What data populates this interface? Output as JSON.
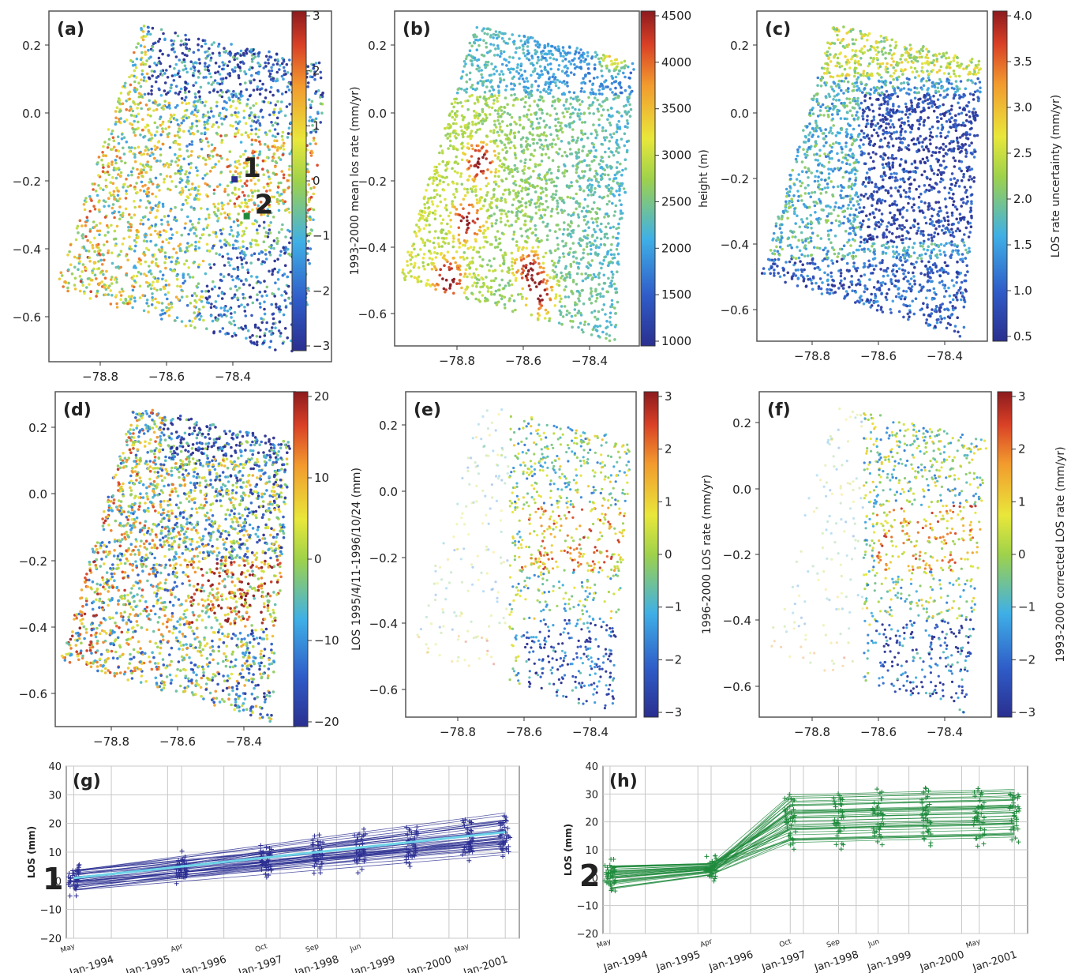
{
  "chart_data": [
    {
      "id": "a",
      "type": "scatter",
      "panel_label": "(a)",
      "x_ticks": [
        "−78.8",
        "−78.6",
        "−78.4"
      ],
      "y_ticks": [
        "0.2",
        "0.0",
        "−0.2",
        "−0.4",
        "−0.6"
      ],
      "colorbar": {
        "label": "1993-2000 mean los rate (mm/yr)",
        "ticks": [
          "3",
          "2",
          "1",
          "0",
          "−1",
          "−2",
          "−3"
        ],
        "range": [
          -3,
          3
        ]
      },
      "xlim": [
        -78.95,
        -78.25
      ],
      "ylim": [
        -0.7,
        0.3
      ],
      "markers": [
        {
          "label": "1",
          "x": -78.49,
          "y": -0.18,
          "color": "#2a2d8f"
        },
        {
          "label": "2",
          "x": -78.46,
          "y": -0.285,
          "color": "#1f8a3c"
        }
      ],
      "colormap": "jet"
    },
    {
      "id": "b",
      "type": "scatter",
      "panel_label": "(b)",
      "x_ticks": [
        "−78.8",
        "−78.6",
        "−78.4"
      ],
      "y_ticks": [
        "0.2",
        "0.0",
        "−0.2",
        "−0.4",
        "−0.6"
      ],
      "colorbar": {
        "label": "height (m)",
        "ticks": [
          "4500",
          "4000",
          "3500",
          "3000",
          "2500",
          "2000",
          "1500",
          "1000"
        ],
        "range": [
          750,
          4650
        ]
      },
      "xlim": [
        -78.95,
        -78.25
      ],
      "ylim": [
        -0.7,
        0.3
      ],
      "colormap": "jet"
    },
    {
      "id": "c",
      "type": "scatter",
      "panel_label": "(c)",
      "x_ticks": [
        "−78.8",
        "−78.6",
        "−78.4"
      ],
      "y_ticks": [
        "0.2",
        "0.0",
        "−0.2",
        "−0.4",
        "−0.6"
      ],
      "colorbar": {
        "label": "LOS rate uncertainty (mm/yr)",
        "ticks": [
          "4.0",
          "3.5",
          "3.0",
          "2.5",
          "2.0",
          "1.5",
          "1.0",
          "0.5"
        ],
        "range": [
          0.1,
          4.3
        ]
      },
      "xlim": [
        -78.95,
        -78.25
      ],
      "ylim": [
        -0.7,
        0.3
      ],
      "colormap": "jet"
    },
    {
      "id": "d",
      "type": "scatter",
      "panel_label": "(d)",
      "x_ticks": [
        "−78.8",
        "−78.6",
        "−78.4"
      ],
      "y_ticks": [
        "0.2",
        "0.0",
        "−0.2",
        "−0.4",
        "−0.6"
      ],
      "colorbar": {
        "label": "LOS 1995/4/11-1996/10/24 (mm)",
        "ticks": [
          "20",
          "10",
          "0",
          "−10",
          "−20"
        ],
        "range": [
          -25,
          25
        ]
      },
      "xlim": [
        -78.95,
        -78.25
      ],
      "ylim": [
        -0.7,
        0.3
      ],
      "colormap": "jet"
    },
    {
      "id": "e",
      "type": "scatter",
      "panel_label": "(e)",
      "x_ticks": [
        "−78.8",
        "−78.6",
        "−78.4"
      ],
      "y_ticks": [
        "0.2",
        "0.0",
        "−0.2",
        "−0.4",
        "−0.6"
      ],
      "colorbar": {
        "label": "1996-2000 LOS rate (mm/yr)",
        "ticks": [
          "3",
          "2",
          "1",
          "0",
          "−1",
          "−2",
          "−3"
        ],
        "range": [
          -3,
          3
        ]
      },
      "xlim": [
        -78.95,
        -78.25
      ],
      "ylim": [
        -0.7,
        0.3
      ],
      "colormap": "jet"
    },
    {
      "id": "f",
      "type": "scatter",
      "panel_label": "(f)",
      "x_ticks": [
        "−78.8",
        "−78.6",
        "−78.4"
      ],
      "y_ticks": [
        "0.2",
        "0.0",
        "−0.2",
        "−0.4",
        "−0.6"
      ],
      "colorbar": {
        "label": "1993-2000 corrected LOS rate (mm/yr)",
        "ticks": [
          "3",
          "2",
          "1",
          "0",
          "−1",
          "−2",
          "−3"
        ],
        "range": [
          -3,
          3
        ]
      },
      "xlim": [
        -78.95,
        -78.25
      ],
      "ylim": [
        -0.7,
        0.3
      ],
      "colormap": "jet"
    },
    {
      "id": "g",
      "type": "line",
      "panel_label": "(g)",
      "point_label": "1",
      "ylabel": "LOS (mm)",
      "ylim": [
        -20,
        40
      ],
      "y_ticks": [
        "40",
        "30",
        "20",
        "10",
        "0",
        "−10",
        "−20"
      ],
      "x_ticks": [
        "Jan-1994",
        "Jan-1995",
        "Jan-1996",
        "Jan-1997",
        "Jan-1998",
        "Jan-1999",
        "Jan-2000",
        "Jan-2001"
      ],
      "acquisition_labels": [
        "May",
        "Apr",
        "Oct",
        "Sep",
        "Jun",
        "May"
      ],
      "color": "#2b2e91",
      "mean_color": "#6fd3e8",
      "trend_mm_per_yr": 2.1,
      "start_value_mm": 0,
      "end_value_mm": 17
    },
    {
      "id": "h",
      "type": "line",
      "panel_label": "(h)",
      "point_label": "2",
      "ylabel": "LOS (mm)",
      "ylim": [
        -20,
        40
      ],
      "y_ticks": [
        "40",
        "30",
        "20",
        "10",
        "0",
        "−10",
        "−20"
      ],
      "x_ticks": [
        "Jan-1994",
        "Jan-1995",
        "Jan-1996",
        "Jan-1997",
        "Jan-1998",
        "Jan-1999",
        "Jan-2000",
        "Jan-2001"
      ],
      "acquisition_labels": [
        "May",
        "Apr",
        "Oct",
        "Sep",
        "Jun",
        "May"
      ],
      "color": "#1f8a3c",
      "values_mm": {
        "1993-05": 0,
        "1995-04": 4,
        "1996-10": 21,
        "1997-09": 21,
        "1998-06": 21,
        "1999-05": 21,
        "2000-05": 22,
        "2001-01": 22
      }
    }
  ]
}
